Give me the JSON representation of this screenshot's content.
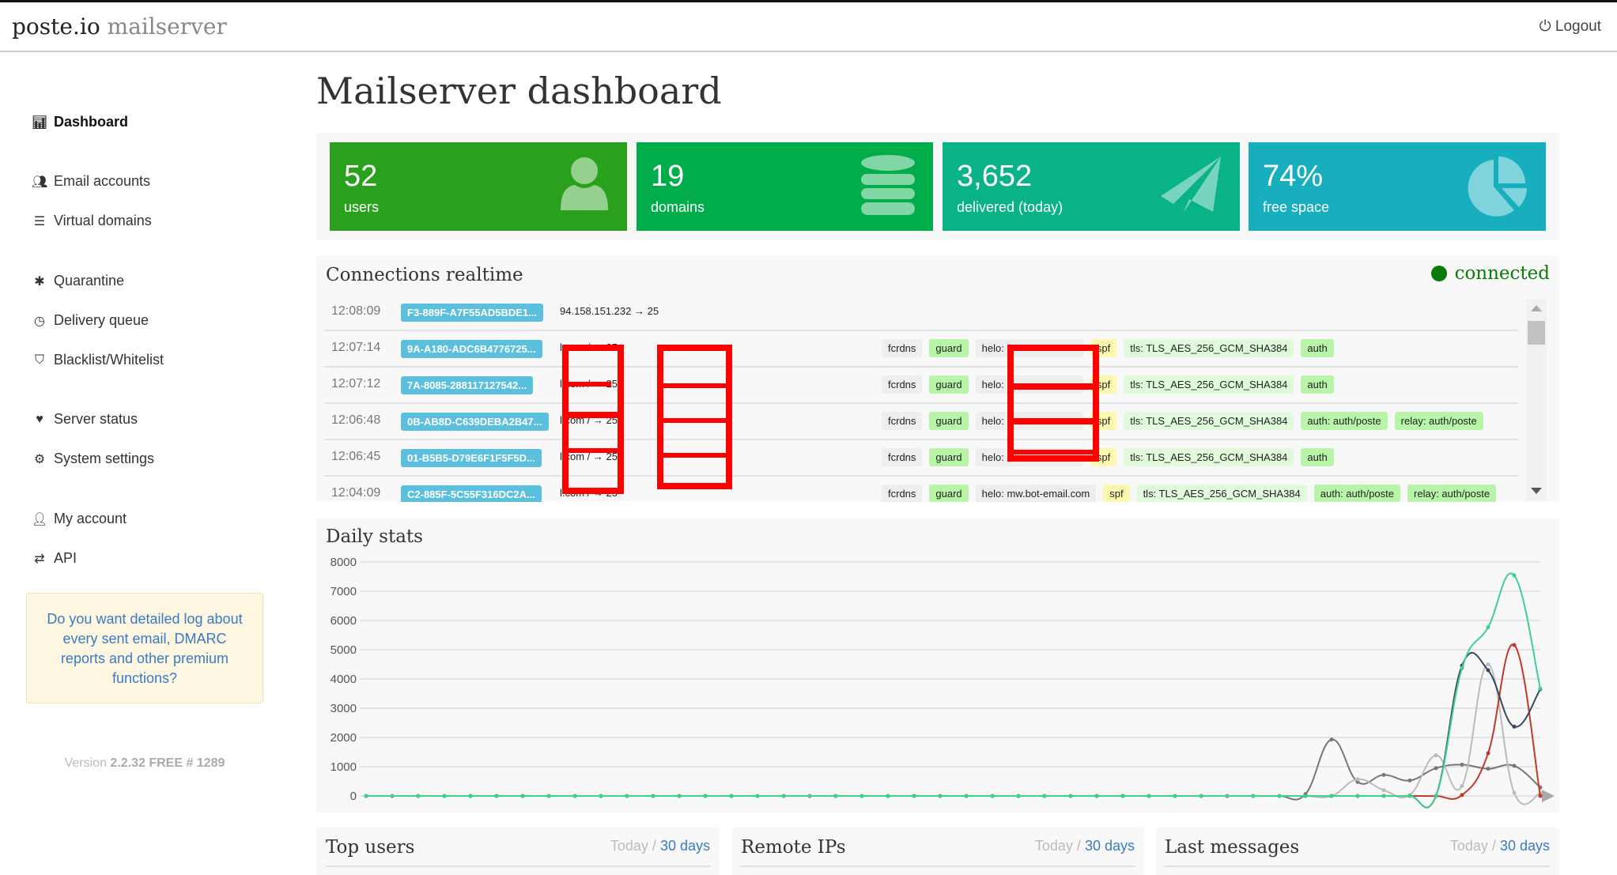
{
  "header": {
    "brand": "poste.io",
    "brand_sub": "mailserver",
    "logout": "Logout"
  },
  "sidebar": {
    "items": [
      {
        "label": "Dashboard",
        "icon": "bar-chart-icon",
        "active": true
      },
      {
        "label": "Email accounts",
        "icon": "users-icon"
      },
      {
        "label": "Virtual domains",
        "icon": "database-icon"
      },
      {
        "label": "Quarantine",
        "icon": "bug-icon"
      },
      {
        "label": "Delivery queue",
        "icon": "clock-icon"
      },
      {
        "label": "Blacklist/Whitelist",
        "icon": "shield-icon"
      },
      {
        "label": "Server status",
        "icon": "heartbeat-icon"
      },
      {
        "label": "System settings",
        "icon": "gears-icon"
      },
      {
        "label": "My account",
        "icon": "user-icon"
      },
      {
        "label": "API",
        "icon": "exchange-icon"
      }
    ],
    "promo": "Do you want detailed log about every sent email, DMARC reports and other premium functions?",
    "version_label": "Version",
    "version": "2.2.32 FREE # 1289"
  },
  "main": {
    "title": "Mailserver dashboard",
    "stats": [
      {
        "value": "52",
        "label": "users",
        "color": "#2aa11d",
        "icon": "user-icon"
      },
      {
        "value": "19",
        "label": "domains",
        "color": "#00ad4a",
        "icon": "database-icon"
      },
      {
        "value": "3,652",
        "label": "delivered (today)",
        "color": "#0ab288",
        "icon": "paper-plane-icon"
      },
      {
        "value": "74%",
        "label": "free space",
        "color": "#17afbd",
        "icon": "pie-chart-icon"
      }
    ],
    "connections": {
      "title": "Connections realtime",
      "status": "connected",
      "rows": [
        {
          "time": "12:08:09",
          "id": "F3-889F-A7F55AD5BDE1...",
          "host": "94.158.151.232 → 25",
          "tags": []
        },
        {
          "time": "12:07:14",
          "id": "9A-A180-ADC6B4776725...",
          "host": "l.com / → 25",
          "tags": [
            "fcrdns",
            "guard",
            "helo:",
            "spf",
            "tls: TLS_AES_256_GCM_SHA384",
            "auth"
          ]
        },
        {
          "time": "12:07:12",
          "id": "7A-8085-288117127542...",
          "host": "l.com / → 25",
          "tags": [
            "fcrdns",
            "guard",
            "helo:",
            "spf",
            "tls: TLS_AES_256_GCM_SHA384",
            "auth"
          ]
        },
        {
          "time": "12:06:48",
          "id": "0B-AB8D-C639DEBA2B47...",
          "host": "l.com / → 25",
          "tags": [
            "fcrdns",
            "guard",
            "helo:",
            "spf",
            "tls: TLS_AES_256_GCM_SHA384",
            "auth: auth/poste",
            "relay: auth/poste"
          ]
        },
        {
          "time": "12:06:45",
          "id": "01-B5B5-D79E6F1F5F5D...",
          "host": "l.com / → 25",
          "tags": [
            "fcrdns",
            "guard",
            "helo:",
            "spf",
            "tls: TLS_AES_256_GCM_SHA384",
            "auth"
          ]
        },
        {
          "time": "12:04:09",
          "id": "C2-885F-5C55F316DC2A...",
          "host": "l.com / → 25",
          "tags": [
            "fcrdns",
            "guard",
            "helo: mw.bot-email.com",
            "spf",
            "tls: TLS_AES_256_GCM_SHA384",
            "auth: auth/poste",
            "relay: auth/poste"
          ]
        }
      ]
    },
    "daily_title": "Daily stats",
    "bottom": [
      {
        "title": "Top users",
        "today": "Today",
        "sep": "/",
        "days": "30 days"
      },
      {
        "title": "Remote IPs",
        "today": "Today",
        "sep": "/",
        "days": "30 days"
      },
      {
        "title": "Last messages",
        "today": "Today",
        "sep": "/",
        "days": "30 days"
      }
    ]
  },
  "chart_data": {
    "type": "line",
    "title": "Daily stats",
    "ylim": [
      0,
      8000
    ],
    "yticks": [
      0,
      1000,
      2000,
      3000,
      4000,
      5000,
      6000,
      7000,
      8000
    ],
    "grid": true,
    "points": 46,
    "series": [
      {
        "color": "#777777",
        "values": [
          0,
          0,
          0,
          0,
          0,
          0,
          0,
          0,
          0,
          0,
          0,
          0,
          0,
          0,
          0,
          0,
          0,
          0,
          0,
          0,
          0,
          0,
          0,
          0,
          0,
          0,
          0,
          0,
          0,
          0,
          0,
          0,
          0,
          0,
          0,
          0,
          60,
          1930,
          480,
          720,
          530,
          950,
          1070,
          930,
          1030,
          290
        ]
      },
      {
        "color": "#bbbbbb",
        "values": [
          0,
          0,
          0,
          0,
          0,
          0,
          0,
          0,
          0,
          0,
          0,
          0,
          0,
          0,
          0,
          0,
          0,
          0,
          0,
          0,
          0,
          0,
          0,
          0,
          0,
          0,
          0,
          0,
          0,
          0,
          0,
          0,
          0,
          0,
          0,
          0,
          0,
          0,
          570,
          200,
          30,
          1390,
          340,
          4500,
          110,
          90
        ]
      },
      {
        "color": "#c0392b",
        "values": [
          0,
          0,
          0,
          0,
          0,
          0,
          0,
          0,
          0,
          0,
          0,
          0,
          0,
          0,
          0,
          0,
          0,
          0,
          0,
          0,
          0,
          0,
          0,
          0,
          0,
          0,
          0,
          0,
          0,
          0,
          0,
          0,
          0,
          0,
          0,
          0,
          0,
          0,
          0,
          0,
          0,
          0,
          30,
          1460,
          5160,
          0
        ]
      },
      {
        "color": "#34495e",
        "values": [
          0,
          0,
          0,
          0,
          0,
          0,
          0,
          0,
          0,
          0,
          0,
          0,
          0,
          0,
          0,
          0,
          0,
          0,
          0,
          0,
          0,
          0,
          0,
          0,
          0,
          0,
          0,
          0,
          0,
          0,
          0,
          0,
          0,
          0,
          0,
          0,
          0,
          0,
          0,
          0,
          0,
          0,
          4460,
          4300,
          2370,
          3650
        ]
      },
      {
        "color": "#3fcf8e",
        "values": [
          0,
          0,
          0,
          0,
          0,
          0,
          0,
          0,
          0,
          0,
          0,
          0,
          0,
          0,
          0,
          0,
          0,
          0,
          0,
          0,
          0,
          0,
          0,
          0,
          0,
          0,
          0,
          0,
          0,
          0,
          0,
          0,
          0,
          0,
          0,
          0,
          0,
          0,
          0,
          0,
          0,
          0,
          4370,
          5770,
          7540,
          3670
        ]
      }
    ]
  }
}
